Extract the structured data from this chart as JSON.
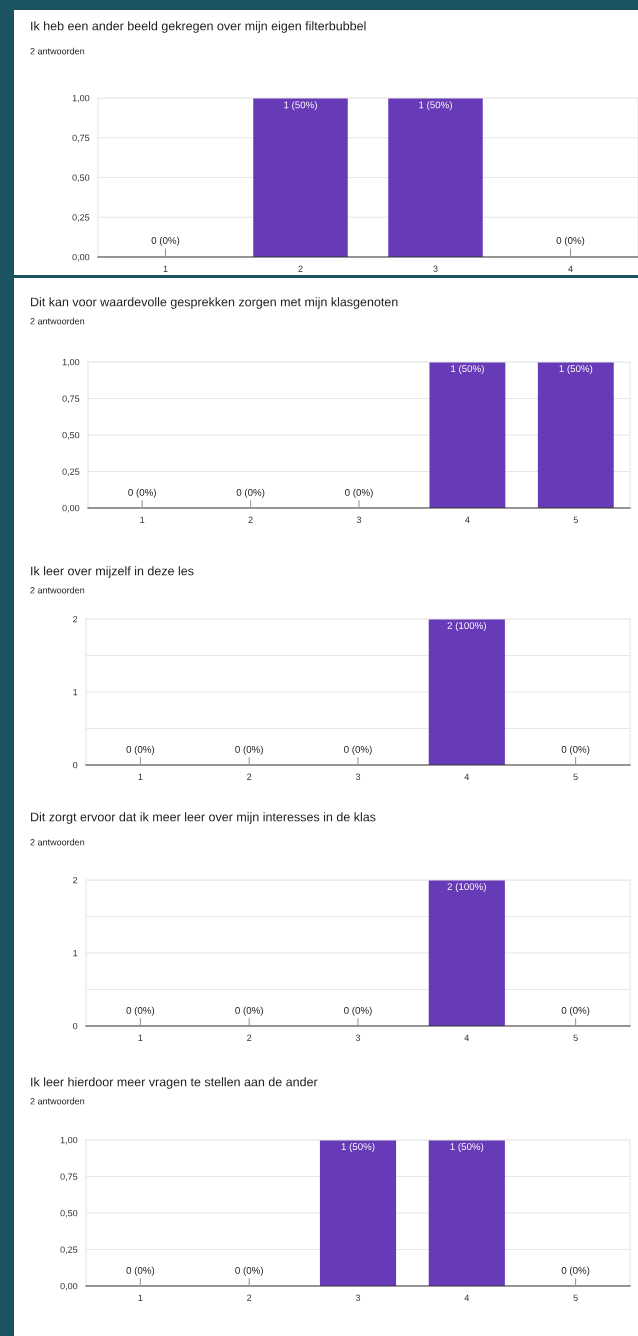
{
  "chart_data": [
    {
      "type": "bar",
      "title": "Ik heb een ander beeld gekregen over mijn eigen filterbubbel",
      "subtitle": "2 antwoorden",
      "categories": [
        "1",
        "2",
        "3",
        "4"
      ],
      "values": [
        0,
        1,
        1,
        0
      ],
      "color": "#673ab7",
      "ylim": [
        0,
        1
      ],
      "yticks": [
        {
          "value": 0,
          "label": "0,00"
        },
        {
          "value": 0.25,
          "label": "0,25"
        },
        {
          "value": 0.5,
          "label": "0,50"
        },
        {
          "value": 0.75,
          "label": "0,75"
        },
        {
          "value": 1,
          "label": "1,00"
        }
      ],
      "grid": "y",
      "value_labels": [
        "0 (0%)",
        "1 (50%)",
        "1 (50%)",
        "0 (0%)"
      ]
    },
    {
      "type": "bar",
      "title": "Dit kan voor waardevolle gesprekken zorgen met mijn klasgenoten",
      "subtitle": "2 antwoorden",
      "categories": [
        "1",
        "2",
        "3",
        "4",
        "5"
      ],
      "values": [
        0,
        0,
        0,
        1,
        1
      ],
      "color": "#673ab7",
      "ylim": [
        0,
        1
      ],
      "yticks": [
        {
          "value": 0,
          "label": "0,00"
        },
        {
          "value": 0.25,
          "label": "0,25"
        },
        {
          "value": 0.5,
          "label": "0,50"
        },
        {
          "value": 0.75,
          "label": "0,75"
        },
        {
          "value": 1,
          "label": "1,00"
        }
      ],
      "grid": "y",
      "value_labels": [
        "0 (0%)",
        "0 (0%)",
        "0 (0%)",
        "1 (50%)",
        "1 (50%)"
      ]
    },
    {
      "type": "bar",
      "title": "Ik leer over mijzelf in deze les",
      "subtitle": "2 antwoorden",
      "categories": [
        "1",
        "2",
        "3",
        "4",
        "5"
      ],
      "values": [
        0,
        0,
        0,
        2,
        0
      ],
      "color": "#673ab7",
      "ylim": [
        0,
        2
      ],
      "yticks": [
        0,
        {
          "value": 0.5,
          "label": null
        },
        1,
        {
          "value": 1.5,
          "label": null
        },
        2
      ],
      "grid": "y",
      "value_labels": [
        "0 (0%)",
        "0 (0%)",
        "0 (0%)",
        "2 (100%)",
        "0 (0%)"
      ]
    },
    {
      "type": "bar",
      "title": "Dit zorgt ervoor dat ik meer leer over mijn interesses in de klas",
      "subtitle": "2 antwoorden",
      "categories": [
        "1",
        "2",
        "3",
        "4",
        "5"
      ],
      "values": [
        0,
        0,
        0,
        2,
        0
      ],
      "color": "#673ab7",
      "ylim": [
        0,
        2
      ],
      "yticks": [
        0,
        {
          "value": 0.5,
          "label": null
        },
        1,
        {
          "value": 1.5,
          "label": null
        },
        2
      ],
      "grid": "y",
      "value_labels": [
        "0 (0%)",
        "0 (0%)",
        "0 (0%)",
        "2 (100%)",
        "0 (0%)"
      ]
    },
    {
      "type": "bar",
      "title": "Ik leer hierdoor meer vragen te stellen aan de ander",
      "subtitle": "2 antwoorden",
      "categories": [
        "1",
        "2",
        "3",
        "4",
        "5"
      ],
      "values": [
        0,
        0,
        1,
        1,
        0
      ],
      "color": "#673ab7",
      "ylim": [
        0,
        1
      ],
      "yticks": [
        {
          "value": 0,
          "label": "0,00"
        },
        {
          "value": 0.25,
          "label": "0,25"
        },
        {
          "value": 0.5,
          "label": "0,50"
        },
        {
          "value": 0.75,
          "label": "0,75"
        },
        {
          "value": 1,
          "label": "1,00"
        }
      ],
      "grid": "y",
      "value_labels": [
        "0 (0%)",
        "0 (0%)",
        "1 (50%)",
        "1 (50%)",
        "0 (0%)"
      ]
    }
  ]
}
